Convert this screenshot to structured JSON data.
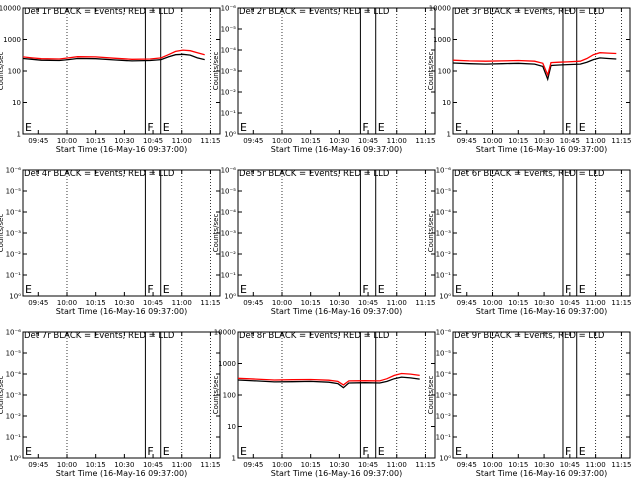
{
  "chart_data": [
    {
      "type": "line",
      "title": "Det 1r BLACK = Events, RED = LLD",
      "ylabel": "Counts/sec",
      "xlabel": "Start Time (16-May-16 09:37:00)",
      "yscale": "log",
      "ylim": [
        1,
        10000
      ],
      "yticks": [
        "1",
        "10",
        "100",
        "1000",
        "10000"
      ],
      "xticks": [
        "09:45",
        "10:00",
        "10:15",
        "10:30",
        "10:45",
        "11:00",
        "11:15"
      ],
      "flags": [
        {
          "label": "F",
          "at": "10:41"
        },
        {
          "label": "E",
          "at": "10:49"
        }
      ],
      "series": [
        {
          "color": "#000000",
          "values": [
            [
              0,
              250
            ],
            [
              0.05,
              235
            ],
            [
              0.1,
              220
            ],
            [
              0.2,
              215
            ],
            [
              0.25,
              230
            ],
            [
              0.3,
              250
            ],
            [
              0.4,
              245
            ],
            [
              0.5,
              225
            ],
            [
              0.6,
              210
            ],
            [
              0.7,
              215
            ],
            [
              0.76,
              230
            ],
            [
              0.8,
              280
            ],
            [
              0.84,
              330
            ],
            [
              0.88,
              340
            ],
            [
              0.92,
              320
            ],
            [
              0.96,
              260
            ],
            [
              1,
              230
            ]
          ]
        },
        {
          "color": "#ff0000",
          "values": [
            [
              0,
              280
            ],
            [
              0.05,
              260
            ],
            [
              0.1,
              245
            ],
            [
              0.2,
              240
            ],
            [
              0.25,
              260
            ],
            [
              0.3,
              285
            ],
            [
              0.4,
              280
            ],
            [
              0.5,
              255
            ],
            [
              0.6,
              235
            ],
            [
              0.7,
              240
            ],
            [
              0.76,
              260
            ],
            [
              0.8,
              330
            ],
            [
              0.84,
              420
            ],
            [
              0.88,
              460
            ],
            [
              0.92,
              440
            ],
            [
              0.96,
              380
            ],
            [
              1,
              330
            ]
          ]
        }
      ]
    },
    {
      "type": "line",
      "title": "Det 2r BLACK = Events, RED = LLD",
      "ylabel": "Counts/sec",
      "xlabel": "Start Time (16-May-16 09:37:00)",
      "yscale": "log",
      "yticks": [
        "10⁰",
        "10⁻¹",
        "10⁻²",
        "10⁻³",
        "10⁻⁴",
        "10⁻⁵",
        "10⁻⁶"
      ],
      "xticks": [
        "09:45",
        "10:00",
        "10:15",
        "10:30",
        "10:45",
        "11:00",
        "11:15"
      ],
      "flags": [
        {
          "label": "F",
          "at": "10:41"
        },
        {
          "label": "E",
          "at": "10:49"
        }
      ],
      "series": []
    },
    {
      "type": "line",
      "title": "Det 3r BLACK = Events, RED = LLD",
      "ylabel": "Counts/sec",
      "xlabel": "Start Time (16-May-16 09:37:00)",
      "yscale": "log",
      "ylim": [
        1,
        10000
      ],
      "yticks": [
        "1",
        "10",
        "100",
        "1000",
        "10000"
      ],
      "xticks": [
        "09:45",
        "10:00",
        "10:15",
        "10:30",
        "10:45",
        "11:00",
        "11:15"
      ],
      "flags": [
        {
          "label": "F",
          "at": "10:41"
        },
        {
          "label": "E",
          "at": "10:49"
        }
      ],
      "series": [
        {
          "color": "#000000",
          "values": [
            [
              0,
              180
            ],
            [
              0.1,
              170
            ],
            [
              0.2,
              165
            ],
            [
              0.3,
              170
            ],
            [
              0.4,
              175
            ],
            [
              0.5,
              165
            ],
            [
              0.55,
              140
            ],
            [
              0.58,
              55
            ],
            [
              0.6,
              150
            ],
            [
              0.65,
              155
            ],
            [
              0.7,
              160
            ],
            [
              0.78,
              165
            ],
            [
              0.82,
              190
            ],
            [
              0.86,
              230
            ],
            [
              0.9,
              260
            ],
            [
              0.95,
              250
            ],
            [
              1,
              240
            ]
          ]
        },
        {
          "color": "#ff0000",
          "values": [
            [
              0,
              220
            ],
            [
              0.1,
              210
            ],
            [
              0.2,
              205
            ],
            [
              0.3,
              210
            ],
            [
              0.4,
              215
            ],
            [
              0.5,
              205
            ],
            [
              0.55,
              175
            ],
            [
              0.58,
              75
            ],
            [
              0.6,
              185
            ],
            [
              0.65,
              190
            ],
            [
              0.7,
              195
            ],
            [
              0.78,
              205
            ],
            [
              0.82,
              250
            ],
            [
              0.86,
              330
            ],
            [
              0.9,
              380
            ],
            [
              0.95,
              370
            ],
            [
              1,
              360
            ]
          ]
        }
      ]
    },
    {
      "type": "line",
      "title": "Det 4r BLACK = Events, RED = LLD",
      "ylabel": "Counts/sec",
      "xlabel": "Start Time (16-May-16 09:37:00)",
      "yscale": "log",
      "yticks": [
        "10⁰",
        "10⁻¹",
        "10⁻²",
        "10⁻³",
        "10⁻⁴",
        "10⁻⁵",
        "10⁻⁶"
      ],
      "xticks": [
        "09:45",
        "10:00",
        "10:15",
        "10:30",
        "10:45",
        "11:00",
        "11:15"
      ],
      "flags": [
        {
          "label": "F",
          "at": "10:41"
        },
        {
          "label": "E",
          "at": "10:49"
        }
      ],
      "series": []
    },
    {
      "type": "line",
      "title": "Det 5r BLACK = Events, RED = LLD",
      "ylabel": "Counts/sec",
      "xlabel": "Start Time (16-May-16 09:37:00)",
      "yscale": "log",
      "yticks": [
        "10⁰",
        "10⁻¹",
        "10⁻²",
        "10⁻³",
        "10⁻⁴",
        "10⁻⁵",
        "10⁻⁶"
      ],
      "xticks": [
        "09:45",
        "10:00",
        "10:15",
        "10:30",
        "10:45",
        "11:00",
        "11:15"
      ],
      "flags": [
        {
          "label": "F",
          "at": "10:41"
        },
        {
          "label": "E",
          "at": "10:49"
        }
      ],
      "series": []
    },
    {
      "type": "line",
      "title": "Det 6r BLACK = Events, RED = LLD",
      "ylabel": "Counts/sec",
      "xlabel": "Start Time (16-May-16 09:37:00)",
      "yscale": "log",
      "yticks": [
        "10⁰",
        "10⁻¹",
        "10⁻²",
        "10⁻³",
        "10⁻⁴",
        "10⁻⁵",
        "10⁻⁶"
      ],
      "xticks": [
        "09:45",
        "10:00",
        "10:15",
        "10:30",
        "10:45",
        "11:00",
        "11:15"
      ],
      "flags": [
        {
          "label": "F",
          "at": "10:41"
        },
        {
          "label": "E",
          "at": "10:49"
        }
      ],
      "series": []
    },
    {
      "type": "line",
      "title": "Det 7r BLACK = Events, RED = LLD",
      "ylabel": "Counts/sec",
      "xlabel": "Start Time (16-May-16 09:37:00)",
      "yscale": "log",
      "yticks": [
        "10⁰",
        "10⁻¹",
        "10⁻²",
        "10⁻³",
        "10⁻⁴",
        "10⁻⁵",
        "10⁻⁶"
      ],
      "xticks": [
        "09:45",
        "10:00",
        "10:15",
        "10:30",
        "10:45",
        "11:00",
        "11:15"
      ],
      "flags": [
        {
          "label": "F",
          "at": "10:41"
        },
        {
          "label": "E",
          "at": "10:49"
        }
      ],
      "series": []
    },
    {
      "type": "line",
      "title": "Det 8r BLACK = Events, RED = LLD",
      "ylabel": "Counts/sec",
      "xlabel": "Start Time (16-May-16 09:37:00)",
      "yscale": "log",
      "ylim": [
        1,
        10000
      ],
      "yticks": [
        "1",
        "10",
        "100",
        "1000",
        "10000"
      ],
      "xticks": [
        "09:45",
        "10:00",
        "10:15",
        "10:30",
        "10:45",
        "11:00",
        "11:15"
      ],
      "flags": [
        {
          "label": "F",
          "at": "10:41"
        },
        {
          "label": "E",
          "at": "10:49"
        }
      ],
      "series": [
        {
          "color": "#000000",
          "values": [
            [
              0,
              300
            ],
            [
              0.1,
              280
            ],
            [
              0.2,
              260
            ],
            [
              0.3,
              265
            ],
            [
              0.4,
              270
            ],
            [
              0.5,
              255
            ],
            [
              0.55,
              230
            ],
            [
              0.58,
              170
            ],
            [
              0.61,
              240
            ],
            [
              0.7,
              245
            ],
            [
              0.78,
              240
            ],
            [
              0.82,
              270
            ],
            [
              0.86,
              330
            ],
            [
              0.9,
              370
            ],
            [
              0.95,
              350
            ],
            [
              1,
              320
            ]
          ]
        },
        {
          "color": "#ff0000",
          "values": [
            [
              0,
              340
            ],
            [
              0.1,
              320
            ],
            [
              0.2,
              300
            ],
            [
              0.3,
              305
            ],
            [
              0.4,
              310
            ],
            [
              0.5,
              295
            ],
            [
              0.55,
              270
            ],
            [
              0.58,
              210
            ],
            [
              0.61,
              280
            ],
            [
              0.7,
              285
            ],
            [
              0.78,
              280
            ],
            [
              0.82,
              330
            ],
            [
              0.86,
              420
            ],
            [
              0.9,
              480
            ],
            [
              0.95,
              460
            ],
            [
              1,
              420
            ]
          ]
        }
      ]
    },
    {
      "type": "line",
      "title": "Det 9r BLACK = Events, RED = LLD",
      "ylabel": "Counts/sec",
      "xlabel": "Start Time (16-May-16 09:37:00)",
      "yscale": "log",
      "yticks": [
        "10⁰",
        "10⁻¹",
        "10⁻²",
        "10⁻³",
        "10⁻⁴",
        "10⁻⁵",
        "10⁻⁶"
      ],
      "xticks": [
        "09:45",
        "10:00",
        "10:15",
        "10:30",
        "10:45",
        "11:00",
        "11:15"
      ],
      "flags": [
        {
          "label": "F",
          "at": "10:41"
        },
        {
          "label": "E",
          "at": "10:49"
        }
      ],
      "series": []
    }
  ]
}
